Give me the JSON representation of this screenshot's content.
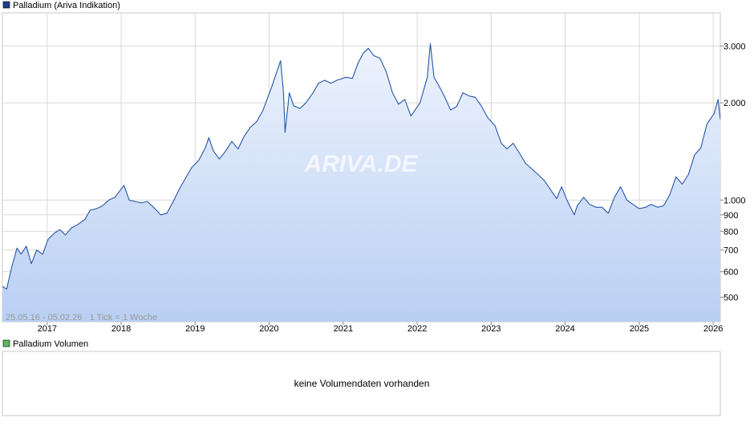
{
  "colors": {
    "line": "#2456a8",
    "fill_top": "#eef3fd",
    "fill_bottom": "#b9cff3",
    "grid": "#d9d9d9",
    "frame": "#c8c8c8",
    "price_legend_box": "#1f3f8f",
    "volume_legend_box": "#5cb85c",
    "watermark": "#c0c0c0"
  },
  "price_panel": {
    "legend_label": "Palladium (Ariva Indikation)",
    "info_text": "25.05.16 - 05.02.26   1 Tick = 1 Woche",
    "watermark": "ARIVA.DE",
    "y_scale": "log",
    "y_tick_labels": [
      "3.000",
      "2.000",
      "1.000",
      "900",
      "800",
      "700",
      "600",
      "500"
    ],
    "x_tick_labels": [
      "2017",
      "2018",
      "2019",
      "2020",
      "2021",
      "2022",
      "2023",
      "2024",
      "2025",
      "2026"
    ]
  },
  "volume_panel": {
    "legend_label": "Palladium Volumen",
    "no_data_text": "keine Volumendaten vorhanden"
  },
  "chart_data": {
    "type": "area",
    "title": "Palladium (Ariva Indikation)",
    "y_scale": "log",
    "ylim": [
      420,
      3800
    ],
    "y_ticks": [
      3000,
      2000,
      1000,
      900,
      800,
      700,
      600,
      500
    ],
    "x_ticks": [
      "2017",
      "2018",
      "2019",
      "2020",
      "2021",
      "2022",
      "2023",
      "2024",
      "2025",
      "2026"
    ],
    "xlim": [
      "2016-05-25",
      "2026-02-05"
    ],
    "grid": true,
    "series": [
      {
        "name": "Palladium",
        "points": [
          [
            "2016-05-25",
            540
          ],
          [
            "2016-06-15",
            530
          ],
          [
            "2016-07-10",
            620
          ],
          [
            "2016-08-05",
            710
          ],
          [
            "2016-08-25",
            680
          ],
          [
            "2016-09-20",
            720
          ],
          [
            "2016-10-15",
            635
          ],
          [
            "2016-11-10",
            700
          ],
          [
            "2016-12-10",
            680
          ],
          [
            "2017-01-05",
            755
          ],
          [
            "2017-02-05",
            790
          ],
          [
            "2017-03-05",
            810
          ],
          [
            "2017-04-01",
            780
          ],
          [
            "2017-05-01",
            820
          ],
          [
            "2017-06-01",
            840
          ],
          [
            "2017-07-05",
            870
          ],
          [
            "2017-08-01",
            930
          ],
          [
            "2017-09-01",
            940
          ],
          [
            "2017-10-01",
            960
          ],
          [
            "2017-11-01",
            1000
          ],
          [
            "2017-12-01",
            1020
          ],
          [
            "2018-01-15",
            1110
          ],
          [
            "2018-02-10",
            1000
          ],
          [
            "2018-03-10",
            990
          ],
          [
            "2018-04-10",
            980
          ],
          [
            "2018-05-10",
            990
          ],
          [
            "2018-06-10",
            950
          ],
          [
            "2018-07-15",
            900
          ],
          [
            "2018-08-15",
            910
          ],
          [
            "2018-09-15",
            990
          ],
          [
            "2018-10-15",
            1080
          ],
          [
            "2018-11-15",
            1170
          ],
          [
            "2018-12-15",
            1260
          ],
          [
            "2019-01-20",
            1330
          ],
          [
            "2019-02-20",
            1450
          ],
          [
            "2019-03-10",
            1560
          ],
          [
            "2019-04-01",
            1420
          ],
          [
            "2019-05-01",
            1340
          ],
          [
            "2019-06-01",
            1420
          ],
          [
            "2019-07-01",
            1520
          ],
          [
            "2019-08-01",
            1440
          ],
          [
            "2019-09-01",
            1580
          ],
          [
            "2019-10-01",
            1680
          ],
          [
            "2019-11-01",
            1750
          ],
          [
            "2019-12-01",
            1890
          ],
          [
            "2020-01-15",
            2250
          ],
          [
            "2020-02-27",
            2700
          ],
          [
            "2020-03-12",
            2150
          ],
          [
            "2020-03-20",
            1620
          ],
          [
            "2020-04-10",
            2150
          ],
          [
            "2020-05-01",
            1960
          ],
          [
            "2020-06-01",
            1920
          ],
          [
            "2020-07-01",
            2000
          ],
          [
            "2020-08-05",
            2150
          ],
          [
            "2020-09-01",
            2300
          ],
          [
            "2020-10-01",
            2350
          ],
          [
            "2020-11-01",
            2300
          ],
          [
            "2020-12-01",
            2350
          ],
          [
            "2021-01-15",
            2400
          ],
          [
            "2021-02-15",
            2380
          ],
          [
            "2021-03-15",
            2650
          ],
          [
            "2021-04-10",
            2850
          ],
          [
            "2021-05-05",
            2950
          ],
          [
            "2021-06-01",
            2800
          ],
          [
            "2021-07-01",
            2750
          ],
          [
            "2021-08-01",
            2500
          ],
          [
            "2021-09-01",
            2150
          ],
          [
            "2021-10-01",
            1980
          ],
          [
            "2021-11-01",
            2050
          ],
          [
            "2021-12-01",
            1820
          ],
          [
            "2022-01-15",
            2000
          ],
          [
            "2022-02-20",
            2400
          ],
          [
            "2022-03-07",
            3050
          ],
          [
            "2022-03-25",
            2400
          ],
          [
            "2022-04-20",
            2250
          ],
          [
            "2022-05-15",
            2100
          ],
          [
            "2022-06-15",
            1900
          ],
          [
            "2022-07-15",
            1950
          ],
          [
            "2022-08-15",
            2150
          ],
          [
            "2022-09-15",
            2100
          ],
          [
            "2022-10-15",
            2080
          ],
          [
            "2022-11-15",
            1950
          ],
          [
            "2022-12-15",
            1800
          ],
          [
            "2023-01-20",
            1700
          ],
          [
            "2023-02-20",
            1500
          ],
          [
            "2023-03-20",
            1440
          ],
          [
            "2023-04-20",
            1500
          ],
          [
            "2023-05-20",
            1400
          ],
          [
            "2023-06-20",
            1300
          ],
          [
            "2023-07-20",
            1250
          ],
          [
            "2023-08-20",
            1200
          ],
          [
            "2023-09-20",
            1150
          ],
          [
            "2023-10-20",
            1080
          ],
          [
            "2023-11-20",
            1010
          ],
          [
            "2023-12-15",
            1100
          ],
          [
            "2024-01-10",
            1000
          ],
          [
            "2024-02-15",
            900
          ],
          [
            "2024-03-01",
            960
          ],
          [
            "2024-04-01",
            1020
          ],
          [
            "2024-05-01",
            970
          ],
          [
            "2024-06-01",
            950
          ],
          [
            "2024-07-01",
            950
          ],
          [
            "2024-08-01",
            910
          ],
          [
            "2024-09-01",
            1020
          ],
          [
            "2024-10-01",
            1100
          ],
          [
            "2024-11-01",
            1000
          ],
          [
            "2024-12-01",
            970
          ],
          [
            "2025-01-01",
            940
          ],
          [
            "2025-02-01",
            950
          ],
          [
            "2025-03-01",
            970
          ],
          [
            "2025-04-01",
            950
          ],
          [
            "2025-05-01",
            960
          ],
          [
            "2025-06-01",
            1040
          ],
          [
            "2025-07-01",
            1180
          ],
          [
            "2025-08-01",
            1120
          ],
          [
            "2025-09-01",
            1200
          ],
          [
            "2025-10-01",
            1380
          ],
          [
            "2025-11-01",
            1450
          ],
          [
            "2025-12-01",
            1720
          ],
          [
            "2026-01-05",
            1850
          ],
          [
            "2026-01-25",
            2050
          ],
          [
            "2026-02-05",
            1780
          ]
        ]
      }
    ]
  }
}
